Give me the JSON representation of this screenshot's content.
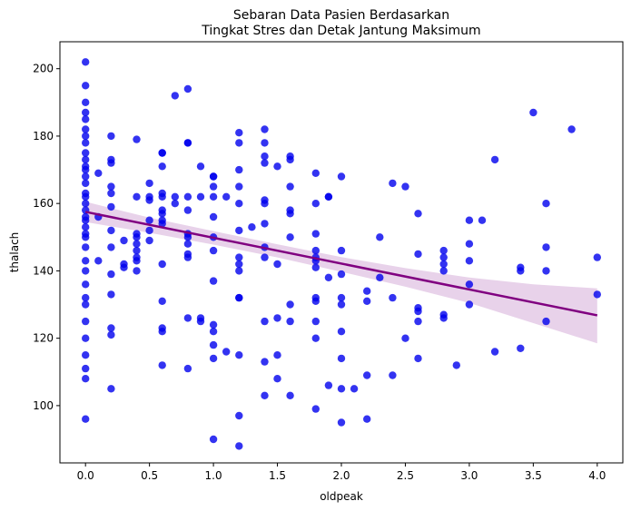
{
  "chart_data": {
    "type": "scatter",
    "title_lines": [
      "Sebaran Data Pasien Berdasarkan",
      "Tingkat Stres dan Detak Jantung Maksimum"
    ],
    "xlabel": "oldpeak",
    "ylabel": "thalach",
    "xlim": [
      -0.2,
      4.2
    ],
    "ylim": [
      83,
      208
    ],
    "x_ticks": [
      0.0,
      0.5,
      1.0,
      1.5,
      2.0,
      2.5,
      3.0,
      3.5,
      4.0
    ],
    "x_tick_labels": [
      "0.0",
      "0.5",
      "1.0",
      "1.5",
      "2.0",
      "2.5",
      "3.0",
      "3.5",
      "4.0"
    ],
    "y_ticks": [
      100,
      120,
      140,
      160,
      180,
      200
    ],
    "y_tick_labels": [
      "100",
      "120",
      "140",
      "160",
      "180",
      "200"
    ],
    "grid": false,
    "colors": {
      "points": "#0000ee",
      "regression": "#800080",
      "band": "#e8d2ea"
    },
    "points": [
      [
        0.0,
        202
      ],
      [
        0.0,
        195
      ],
      [
        0.0,
        190
      ],
      [
        0.0,
        187
      ],
      [
        0.0,
        185
      ],
      [
        0.0,
        182
      ],
      [
        0.0,
        180
      ],
      [
        0.0,
        178
      ],
      [
        0.0,
        175
      ],
      [
        0.0,
        173
      ],
      [
        0.0,
        171
      ],
      [
        0.0,
        170
      ],
      [
        0.0,
        168
      ],
      [
        0.0,
        166
      ],
      [
        0.0,
        163
      ],
      [
        0.0,
        162
      ],
      [
        0.0,
        160
      ],
      [
        0.0,
        158
      ],
      [
        0.0,
        156
      ],
      [
        0.0,
        155
      ],
      [
        0.0,
        153
      ],
      [
        0.0,
        151
      ],
      [
        0.0,
        150
      ],
      [
        0.0,
        147
      ],
      [
        0.0,
        143
      ],
      [
        0.0,
        140
      ],
      [
        0.0,
        136
      ],
      [
        0.0,
        132
      ],
      [
        0.0,
        130
      ],
      [
        0.0,
        125
      ],
      [
        0.0,
        120
      ],
      [
        0.0,
        115
      ],
      [
        0.0,
        111
      ],
      [
        0.0,
        108
      ],
      [
        0.0,
        96
      ],
      [
        0.1,
        169
      ],
      [
        0.1,
        156
      ],
      [
        0.1,
        143
      ],
      [
        0.2,
        180
      ],
      [
        0.2,
        173
      ],
      [
        0.2,
        172
      ],
      [
        0.2,
        165
      ],
      [
        0.2,
        163
      ],
      [
        0.2,
        159
      ],
      [
        0.2,
        152
      ],
      [
        0.2,
        147
      ],
      [
        0.2,
        139
      ],
      [
        0.2,
        133
      ],
      [
        0.2,
        123
      ],
      [
        0.2,
        121
      ],
      [
        0.2,
        105
      ],
      [
        0.3,
        149
      ],
      [
        0.3,
        142
      ],
      [
        0.3,
        141
      ],
      [
        0.4,
        179
      ],
      [
        0.4,
        162
      ],
      [
        0.4,
        151
      ],
      [
        0.4,
        150
      ],
      [
        0.4,
        148
      ],
      [
        0.4,
        146
      ],
      [
        0.4,
        144
      ],
      [
        0.4,
        143
      ],
      [
        0.4,
        140
      ],
      [
        0.5,
        166
      ],
      [
        0.5,
        162
      ],
      [
        0.5,
        161
      ],
      [
        0.5,
        155
      ],
      [
        0.5,
        152
      ],
      [
        0.5,
        149
      ],
      [
        0.6,
        175
      ],
      [
        0.6,
        175
      ],
      [
        0.6,
        171
      ],
      [
        0.6,
        163
      ],
      [
        0.6,
        162
      ],
      [
        0.6,
        158
      ],
      [
        0.6,
        157
      ],
      [
        0.6,
        155
      ],
      [
        0.6,
        154
      ],
      [
        0.6,
        142
      ],
      [
        0.6,
        131
      ],
      [
        0.6,
        123
      ],
      [
        0.6,
        122
      ],
      [
        0.6,
        112
      ],
      [
        0.7,
        192
      ],
      [
        0.7,
        162
      ],
      [
        0.7,
        160
      ],
      [
        0.8,
        194
      ],
      [
        0.8,
        178
      ],
      [
        0.8,
        178
      ],
      [
        0.8,
        162
      ],
      [
        0.8,
        158
      ],
      [
        0.8,
        151
      ],
      [
        0.8,
        150
      ],
      [
        0.8,
        148
      ],
      [
        0.8,
        145
      ],
      [
        0.8,
        144
      ],
      [
        0.8,
        126
      ],
      [
        0.8,
        111
      ],
      [
        0.9,
        171
      ],
      [
        0.9,
        162
      ],
      [
        0.9,
        126
      ],
      [
        0.9,
        125
      ],
      [
        1.0,
        168
      ],
      [
        1.0,
        168
      ],
      [
        1.0,
        165
      ],
      [
        1.0,
        162
      ],
      [
        1.0,
        156
      ],
      [
        1.0,
        150
      ],
      [
        1.0,
        146
      ],
      [
        1.0,
        137
      ],
      [
        1.0,
        124
      ],
      [
        1.0,
        122
      ],
      [
        1.0,
        118
      ],
      [
        1.0,
        114
      ],
      [
        1.0,
        90
      ],
      [
        1.1,
        162
      ],
      [
        1.1,
        116
      ],
      [
        1.2,
        181
      ],
      [
        1.2,
        178
      ],
      [
        1.2,
        170
      ],
      [
        1.2,
        165
      ],
      [
        1.2,
        160
      ],
      [
        1.2,
        152
      ],
      [
        1.2,
        144
      ],
      [
        1.2,
        142
      ],
      [
        1.2,
        140
      ],
      [
        1.2,
        132
      ],
      [
        1.2,
        132
      ],
      [
        1.2,
        115
      ],
      [
        1.2,
        97
      ],
      [
        1.2,
        88
      ],
      [
        1.3,
        153
      ],
      [
        1.4,
        182
      ],
      [
        1.4,
        178
      ],
      [
        1.4,
        174
      ],
      [
        1.4,
        172
      ],
      [
        1.4,
        161
      ],
      [
        1.4,
        160
      ],
      [
        1.4,
        154
      ],
      [
        1.4,
        147
      ],
      [
        1.4,
        144
      ],
      [
        1.4,
        125
      ],
      [
        1.4,
        113
      ],
      [
        1.4,
        103
      ],
      [
        1.5,
        171
      ],
      [
        1.5,
        142
      ],
      [
        1.5,
        126
      ],
      [
        1.5,
        115
      ],
      [
        1.5,
        108
      ],
      [
        1.6,
        174
      ],
      [
        1.6,
        173
      ],
      [
        1.6,
        165
      ],
      [
        1.6,
        158
      ],
      [
        1.6,
        157
      ],
      [
        1.6,
        150
      ],
      [
        1.6,
        130
      ],
      [
        1.6,
        125
      ],
      [
        1.6,
        103
      ],
      [
        1.8,
        169
      ],
      [
        1.8,
        160
      ],
      [
        1.8,
        151
      ],
      [
        1.8,
        146
      ],
      [
        1.8,
        144
      ],
      [
        1.8,
        143
      ],
      [
        1.8,
        141
      ],
      [
        1.8,
        132
      ],
      [
        1.8,
        131
      ],
      [
        1.8,
        125
      ],
      [
        1.8,
        120
      ],
      [
        1.8,
        99
      ],
      [
        1.9,
        162
      ],
      [
        1.9,
        162
      ],
      [
        1.9,
        138
      ],
      [
        1.9,
        106
      ],
      [
        2.0,
        168
      ],
      [
        2.0,
        146
      ],
      [
        2.0,
        139
      ],
      [
        2.0,
        132
      ],
      [
        2.0,
        130
      ],
      [
        2.0,
        122
      ],
      [
        2.0,
        114
      ],
      [
        2.0,
        105
      ],
      [
        2.0,
        95
      ],
      [
        2.1,
        105
      ],
      [
        2.2,
        134
      ],
      [
        2.2,
        131
      ],
      [
        2.2,
        109
      ],
      [
        2.2,
        96
      ],
      [
        2.3,
        150
      ],
      [
        2.3,
        138
      ],
      [
        2.4,
        166
      ],
      [
        2.4,
        132
      ],
      [
        2.4,
        109
      ],
      [
        2.5,
        165
      ],
      [
        2.5,
        120
      ],
      [
        2.6,
        157
      ],
      [
        2.6,
        145
      ],
      [
        2.6,
        129
      ],
      [
        2.6,
        128
      ],
      [
        2.6,
        125
      ],
      [
        2.6,
        114
      ],
      [
        2.8,
        146
      ],
      [
        2.8,
        144
      ],
      [
        2.8,
        142
      ],
      [
        2.8,
        140
      ],
      [
        2.8,
        127
      ],
      [
        2.8,
        126
      ],
      [
        2.9,
        112
      ],
      [
        3.0,
        155
      ],
      [
        3.0,
        148
      ],
      [
        3.0,
        143
      ],
      [
        3.0,
        136
      ],
      [
        3.0,
        130
      ],
      [
        3.1,
        155
      ],
      [
        3.2,
        173
      ],
      [
        3.2,
        116
      ],
      [
        3.4,
        141
      ],
      [
        3.4,
        140
      ],
      [
        3.4,
        117
      ],
      [
        3.5,
        187
      ],
      [
        3.6,
        160
      ],
      [
        3.6,
        147
      ],
      [
        3.6,
        140
      ],
      [
        3.6,
        125
      ],
      [
        3.8,
        182
      ],
      [
        4.0,
        144
      ],
      [
        4.0,
        133
      ]
    ],
    "regression": {
      "x": [
        0.0,
        4.0
      ],
      "y": [
        157.5,
        126.8
      ],
      "band_x": [
        0.0,
        0.5,
        1.0,
        1.5,
        2.0,
        2.5,
        3.0,
        3.5,
        4.0
      ],
      "band_upper": [
        160.5,
        155.8,
        151.8,
        147.9,
        144.1,
        140.8,
        138.0,
        136.0,
        134.8
      ],
      "band_lower": [
        154.5,
        151.3,
        147.8,
        144.0,
        139.7,
        135.3,
        130.5,
        124.5,
        118.5
      ]
    }
  }
}
